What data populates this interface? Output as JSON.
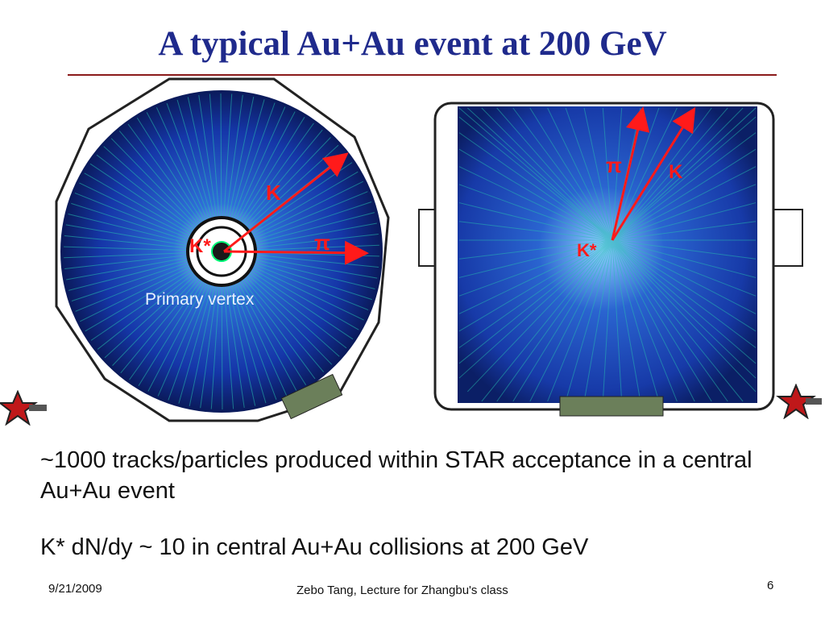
{
  "slide": {
    "title": "A typical Au+Au event at 200 GeV",
    "left_view": {
      "labels": {
        "k": "K",
        "pi": "π",
        "kstar": "K*",
        "vertex": "Primary vertex"
      }
    },
    "right_view": {
      "labels": {
        "pi": "π",
        "k": "K",
        "kstar": "K*"
      }
    },
    "bullets": [
      "~1000 tracks/particles produced within STAR acceptance in a central Au+Au event",
      "K* dN/dy ~ 10 in central Au+Au collisions at 200 GeV"
    ],
    "footer": {
      "date": "9/21/2009",
      "center": "Zebo Tang, Lecture for Zhangbu's class",
      "page": "6"
    },
    "colors": {
      "title": "#1f2a8c",
      "rule": "#8b1a1a",
      "arrow": "#ff1a1a",
      "detector_bg": "#0a1a3a"
    },
    "icons": [
      "star-logo-icon"
    ]
  }
}
